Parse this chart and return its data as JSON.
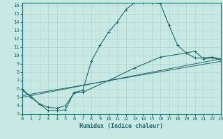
{
  "xlabel": "Humidex (Indice chaleur)",
  "xlim": [
    0,
    23
  ],
  "ylim": [
    3,
    16
  ],
  "xticks": [
    0,
    1,
    2,
    3,
    4,
    5,
    6,
    7,
    8,
    9,
    10,
    11,
    12,
    13,
    14,
    15,
    16,
    17,
    18,
    19,
    20,
    21,
    22,
    23
  ],
  "yticks": [
    3,
    4,
    5,
    6,
    7,
    8,
    9,
    10,
    11,
    12,
    13,
    14,
    15,
    16
  ],
  "bg_color": "#c8e8e4",
  "line_color": "#1a6b6b",
  "grid_color": "#b0d4d0",
  "line1_x": [
    0,
    1,
    2,
    3,
    4,
    5,
    6,
    7,
    8,
    9,
    10,
    11,
    12,
    13,
    14,
    15,
    16,
    17,
    18,
    19,
    20,
    21,
    22,
    23
  ],
  "line1_y": [
    6.0,
    5.0,
    4.2,
    3.4,
    3.4,
    3.5,
    5.6,
    5.8,
    9.3,
    11.2,
    12.8,
    14.0,
    15.5,
    16.3,
    16.3,
    16.3,
    16.2,
    13.6,
    11.2,
    10.3,
    9.7,
    9.7,
    9.8,
    9.6
  ],
  "line2_x": [
    0,
    1,
    2,
    3,
    4,
    5,
    6,
    7,
    10,
    13,
    16,
    19,
    20,
    21,
    22,
    23
  ],
  "line2_y": [
    5.8,
    5.1,
    4.2,
    3.8,
    3.7,
    4.0,
    5.5,
    5.6,
    7.0,
    8.5,
    9.8,
    10.3,
    10.5,
    9.6,
    9.7,
    9.5
  ],
  "line3_x": [
    0,
    23
  ],
  "line3_y": [
    5.2,
    9.3
  ],
  "line4_x": [
    0,
    23
  ],
  "line4_y": [
    5.0,
    9.6
  ]
}
